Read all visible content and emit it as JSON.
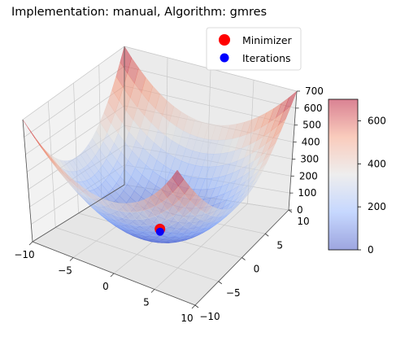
{
  "chart_data": {
    "type": "surface3d",
    "title": "Implementation: manual, Algorithm: gmres",
    "xlabel": "",
    "ylabel": "",
    "zlabel": "",
    "x_ticks": [
      "−10",
      "−5",
      "0",
      "5",
      "10"
    ],
    "y_ticks": [
      "−10",
      "−5",
      "0",
      "5",
      "10"
    ],
    "z_ticks": [
      "0",
      "100",
      "200",
      "300",
      "400",
      "500",
      "600",
      "700"
    ],
    "xlim": [
      -10,
      10
    ],
    "ylim": [
      -10,
      10
    ],
    "zlim": [
      0,
      700
    ],
    "surface": {
      "function": "z = 3x^2 + 4y^2 (approx. quadratic bowl)",
      "colormap": "coolwarm",
      "alpha": 0.5
    },
    "series": [
      {
        "name": "Minimizer",
        "color": "#ff0000",
        "marker": "circle",
        "x": [
          0
        ],
        "y": [
          0
        ],
        "z": [
          0
        ]
      },
      {
        "name": "Iterations",
        "color": "#0000ff",
        "marker": "circle",
        "x": [
          0
        ],
        "y": [
          0
        ],
        "z": [
          0
        ]
      }
    ],
    "colorbar": {
      "ticks": [
        "0",
        "200",
        "400",
        "600"
      ],
      "range": [
        0,
        700
      ]
    },
    "legend": "top-right",
    "grid": true
  }
}
